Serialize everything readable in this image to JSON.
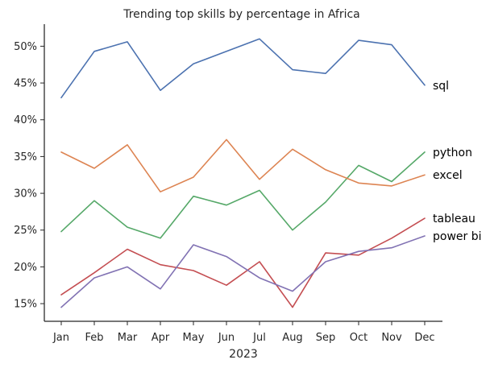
{
  "chart_data": {
    "type": "line",
    "title": "Trending top skills by percentage in Africa",
    "xlabel": "2023",
    "ylabel": "",
    "categories": [
      "Jan",
      "Feb",
      "Mar",
      "Apr",
      "May",
      "Jun",
      "Jul",
      "Aug",
      "Sep",
      "Oct",
      "Nov",
      "Dec"
    ],
    "ylim": [
      12.6,
      53.0
    ],
    "yticks": [
      15,
      20,
      25,
      30,
      35,
      40,
      45,
      50
    ],
    "ytick_labels": [
      "15%",
      "20%",
      "25%",
      "30%",
      "35%",
      "40%",
      "45%",
      "50%"
    ],
    "grid": false,
    "legend": "inline labels at line ends (right)",
    "series": [
      {
        "name": "sql",
        "color": "#4c72b0",
        "values": [
          43.0,
          49.3,
          50.6,
          44.0,
          47.6,
          49.3,
          51.0,
          46.8,
          46.3,
          50.8,
          50.2,
          44.7
        ]
      },
      {
        "name": "python",
        "color": "#55a868",
        "values": [
          24.8,
          29.0,
          25.4,
          23.9,
          29.6,
          28.4,
          30.4,
          25.0,
          28.8,
          33.8,
          31.6,
          35.6
        ]
      },
      {
        "name": "excel",
        "color": "#dd8452",
        "values": [
          35.6,
          33.4,
          36.6,
          30.2,
          32.2,
          37.3,
          31.9,
          36.0,
          33.2,
          31.4,
          31.0,
          32.5
        ]
      },
      {
        "name": "tableau",
        "color": "#c44e52",
        "values": [
          16.2,
          19.2,
          22.4,
          20.3,
          19.5,
          17.5,
          20.7,
          14.5,
          21.9,
          21.6,
          23.9,
          26.6
        ]
      },
      {
        "name": "power bi",
        "color": "#8172b3",
        "values": [
          14.5,
          18.5,
          20.0,
          17.0,
          23.0,
          21.4,
          18.5,
          16.7,
          20.7,
          22.1,
          22.6,
          24.2
        ]
      }
    ]
  }
}
